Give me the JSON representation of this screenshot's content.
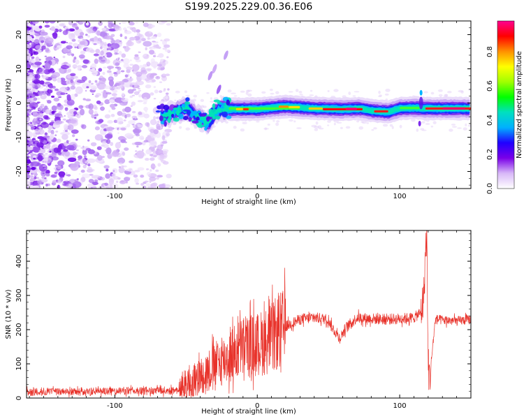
{
  "title": "S199.2025.229.00.36.E06",
  "chart_data": [
    {
      "type": "heatmap",
      "xlabel": "Height of straight line (km)",
      "ylabel": "Frequency (Hz)",
      "xlim": [
        -162,
        150
      ],
      "ylim": [
        -25,
        24
      ],
      "x_ticks": [
        -100,
        0,
        100
      ],
      "y_ticks": [
        -20,
        -10,
        0,
        10,
        20
      ],
      "colorbar": {
        "label": "Normalized spectral amplitude",
        "range": [
          0,
          0.98
        ],
        "ticks": [
          0,
          0.2,
          0.4,
          0.6,
          0.8
        ],
        "colors": [
          "#ffffff",
          "#d8b8f8",
          "#7a00e8",
          "#2000ff",
          "#00b0ff",
          "#00e0c0",
          "#00ff00",
          "#a0ff00",
          "#ffff00",
          "#ff9000",
          "#ff0000",
          "#ff0090"
        ]
      },
      "ridge": [
        [
          -68,
          -4
        ],
        [
          -60,
          -3
        ],
        [
          -50,
          -1.5
        ],
        [
          -42,
          -4
        ],
        [
          -35,
          -6
        ],
        [
          -28,
          -2
        ],
        [
          -22,
          -1.8
        ],
        [
          0,
          -1.8
        ],
        [
          20,
          -1.0
        ],
        [
          40,
          -1.6
        ],
        [
          60,
          -1.8
        ],
        [
          72,
          -1.6
        ],
        [
          80,
          -2.2
        ],
        [
          92,
          -2.6
        ],
        [
          100,
          -1.6
        ],
        [
          110,
          -1.4
        ],
        [
          116,
          -1.6
        ],
        [
          130,
          -1.6
        ],
        [
          150,
          -1.6
        ]
      ]
    },
    {
      "type": "line",
      "xlabel": "Height of straight line (km)",
      "ylabel": "SNR (10 * v/v)",
      "xlim": [
        -162,
        150
      ],
      "ylim": [
        0,
        490
      ],
      "x_ticks": [
        -100,
        0,
        100
      ],
      "y_ticks": [
        0,
        100,
        200,
        300,
        400
      ],
      "series": [
        {
          "name": "SNR",
          "color": "#e8322a",
          "profile_x": [
            -162,
            -100,
            -60,
            -50,
            -40,
            -30,
            -20,
            -10,
            0,
            10,
            20,
            30,
            40,
            50,
            52,
            58,
            62,
            70,
            80,
            90,
            100,
            110,
            115,
            117,
            118,
            119,
            120,
            121,
            125,
            130,
            140,
            150
          ],
          "profile_y": [
            18,
            20,
            22,
            30,
            65,
            95,
            120,
            150,
            155,
            175,
            210,
            230,
            235,
            230,
            210,
            175,
            205,
            235,
            232,
            230,
            232,
            235,
            250,
            300,
            420,
            480,
            100,
            55,
            230,
            228,
            225,
            230
          ]
        }
      ]
    }
  ]
}
